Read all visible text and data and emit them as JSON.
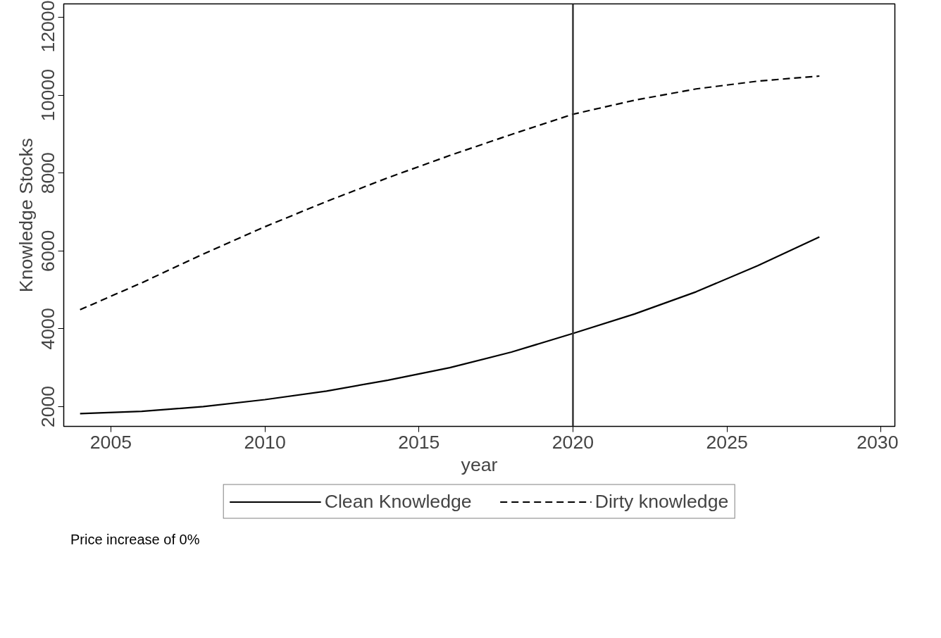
{
  "chart_data": {
    "type": "line",
    "xlabel": "year",
    "ylabel": "Knowledge Stocks",
    "x": [
      2004,
      2006,
      2008,
      2010,
      2012,
      2014,
      2016,
      2018,
      2020,
      2022,
      2024,
      2026,
      2028
    ],
    "series": [
      {
        "name": "Clean Knowledge",
        "color": "#000000",
        "line_style": "solid",
        "values": [
          1820,
          1880,
          2000,
          2180,
          2400,
          2680,
          3000,
          3400,
          3880,
          4380,
          4950,
          5620,
          6360
        ]
      },
      {
        "name": "Dirty knowledge",
        "color": "#000000",
        "line_style": "dashed",
        "values": [
          4490,
          5180,
          5920,
          6620,
          7270,
          7880,
          8450,
          8990,
          9510,
          9870,
          10160,
          10360,
          10490
        ]
      }
    ],
    "xlim": [
      2003.47,
      2030.45
    ],
    "ylim": [
      1493,
      12344
    ],
    "xticks": [
      2005,
      2010,
      2015,
      2020,
      2025,
      2030
    ],
    "yticks": [
      2000,
      4000,
      6000,
      8000,
      10000,
      12000
    ],
    "ref_lines": [
      {
        "axis": "x",
        "value": 2020,
        "color": "#333333"
      }
    ],
    "grid": false,
    "legend": "bottom",
    "marker": "none",
    "annotations": [
      "Price increase of 0%"
    ]
  }
}
